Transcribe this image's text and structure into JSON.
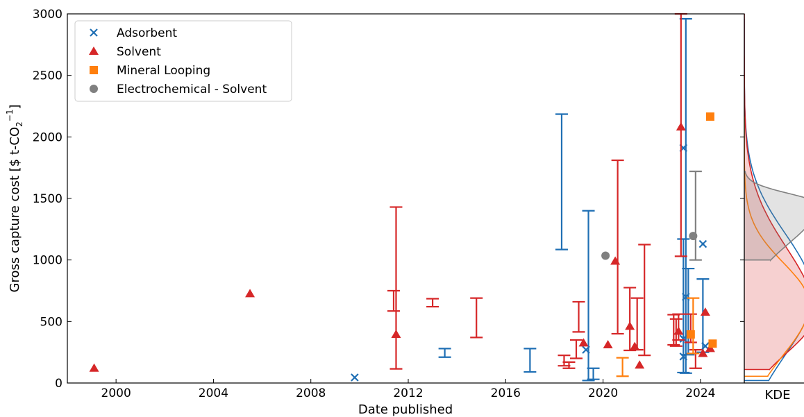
{
  "chart_data": {
    "type": "scatter",
    "xlabel": "Date published",
    "ylabel": "Gross capture cost [$ t-CO",
    "ylabel_sub": "2",
    "ylabel_sup": "−1",
    "ylabel_tail": "]",
    "kde_label": "KDE",
    "xlim": [
      1998,
      2025.8
    ],
    "ylim": [
      0,
      3000
    ],
    "xticks": [
      2000,
      2004,
      2008,
      2012,
      2016,
      2020,
      2024
    ],
    "yticks": [
      0,
      500,
      1000,
      1500,
      2000,
      2500,
      3000
    ],
    "legend_placement": "top-left",
    "series": [
      {
        "name": "Adsorbent",
        "marker": "x",
        "color": "#1f6fb4",
        "points": [
          [
            2009.8,
            45
          ],
          [
            2019.3,
            270
          ],
          [
            2023.3,
            1910
          ],
          [
            2023.3,
            360
          ],
          [
            2023.4,
            700
          ],
          [
            2023.3,
            215
          ],
          [
            2024.1,
            1130
          ],
          [
            2024.2,
            300
          ]
        ],
        "ranges": [
          [
            2013.5,
            210,
            280
          ],
          [
            2017.0,
            90,
            280
          ],
          [
            2018.3,
            1085,
            2185
          ],
          [
            2019.4,
            20,
            1400
          ],
          [
            2019.6,
            30,
            120
          ],
          [
            2023.3,
            85,
            1170
          ],
          [
            2023.4,
            80,
            2960
          ],
          [
            2023.5,
            230,
            930
          ],
          [
            2024.1,
            250,
            845
          ]
        ]
      },
      {
        "name": "Solvent",
        "marker": "triangle",
        "color": "#d62728",
        "points": [
          [
            1999.1,
            120
          ],
          [
            2005.5,
            725
          ],
          [
            2011.5,
            395
          ],
          [
            2019.2,
            325
          ],
          [
            2020.2,
            310
          ],
          [
            2020.5,
            990
          ],
          [
            2021.1,
            460
          ],
          [
            2021.3,
            295
          ],
          [
            2021.5,
            145
          ],
          [
            2023.2,
            2080
          ],
          [
            2023.1,
            420
          ],
          [
            2024.1,
            240
          ],
          [
            2024.2,
            575
          ],
          [
            2024.4,
            280
          ]
        ],
        "ranges": [
          [
            2011.4,
            585,
            750
          ],
          [
            2011.5,
            115,
            1430
          ],
          [
            2013.0,
            620,
            685
          ],
          [
            2014.8,
            370,
            690
          ],
          [
            2018.4,
            140,
            225
          ],
          [
            2018.6,
            120,
            170
          ],
          [
            2018.9,
            200,
            350
          ],
          [
            2019.0,
            415,
            660
          ],
          [
            2020.6,
            400,
            1810
          ],
          [
            2021.1,
            265,
            775
          ],
          [
            2021.4,
            270,
            690
          ],
          [
            2021.7,
            225,
            1125
          ],
          [
            2022.9,
            310,
            555
          ],
          [
            2023.1,
            350,
            560
          ],
          [
            2023.2,
            1030,
            3000
          ],
          [
            2023.0,
            300,
            520
          ],
          [
            2023.6,
            330,
            560
          ],
          [
            2023.8,
            120,
            270
          ]
        ]
      },
      {
        "name": "Mineral Looping",
        "marker": "square",
        "color": "#ff7f0e",
        "points": [
          [
            2023.6,
            395
          ],
          [
            2024.4,
            2165
          ],
          [
            2024.5,
            320
          ]
        ],
        "ranges": [
          [
            2020.8,
            55,
            205
          ],
          [
            2023.7,
            240,
            690
          ]
        ]
      },
      {
        "name": "Electrochemical - Solvent",
        "marker": "circle",
        "color": "#808080",
        "points": [
          [
            2020.1,
            1035
          ],
          [
            2023.7,
            1195
          ]
        ],
        "ranges": [
          [
            2023.8,
            1000,
            1720
          ]
        ]
      }
    ],
    "kde": [
      {
        "name": "Adsorbent",
        "color": "#1f6fb4",
        "fill": false,
        "ybottom": 20,
        "ytop": 2960,
        "peak": 720,
        "peak_width": 0.92
      },
      {
        "name": "Solvent",
        "color": "#d62728",
        "fill": true,
        "ybottom": 110,
        "ytop": 3000,
        "peak": 560,
        "peak_width": 0.95
      },
      {
        "name": "Mineral Looping",
        "color": "#ff7f0e",
        "fill": false,
        "ybottom": 55,
        "ytop": 2165,
        "peak": 640,
        "peak_width": 0.88
      },
      {
        "name": "Electrochemical - Solvent",
        "color": "#808080",
        "fill": true,
        "ybottom": 1000,
        "ytop": 1720,
        "peak": 1450,
        "peak_width": 1.0
      }
    ]
  }
}
